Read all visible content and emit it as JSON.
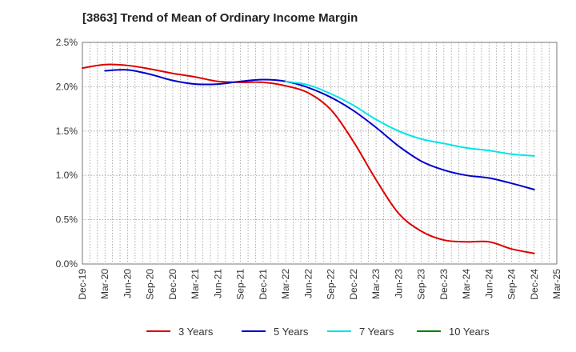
{
  "chart_data": {
    "type": "line",
    "title": "[3863]  Trend of Mean of Ordinary Income Margin",
    "xlabel": "",
    "ylabel": "",
    "ylim": [
      0,
      2.5
    ],
    "yticks": [
      "0.0%",
      "0.5%",
      "1.0%",
      "1.5%",
      "2.0%",
      "2.5%"
    ],
    "xticks": [
      "Dec-19",
      "Mar-20",
      "Jun-20",
      "Sep-20",
      "Dec-20",
      "Mar-21",
      "Jun-21",
      "Sep-21",
      "Dec-21",
      "Mar-22",
      "Jun-22",
      "Sep-22",
      "Dec-22",
      "Mar-23",
      "Jun-23",
      "Sep-23",
      "Dec-23",
      "Mar-24",
      "Jun-24",
      "Sep-24",
      "Dec-24",
      "Mar-25"
    ],
    "grid": true,
    "legend_position": "bottom",
    "series": [
      {
        "name": "3 Years",
        "color": "#dd0000",
        "x": [
          "Dec-19",
          "Mar-20",
          "Jun-20",
          "Sep-20",
          "Dec-20",
          "Mar-21",
          "Jun-21",
          "Sep-21",
          "Dec-21",
          "Mar-22",
          "Jun-22",
          "Sep-22",
          "Dec-22",
          "Mar-23",
          "Jun-23",
          "Sep-23",
          "Dec-23",
          "Mar-24",
          "Jun-24",
          "Sep-24",
          "Dec-24"
        ],
        "values": [
          2.21,
          2.25,
          2.24,
          2.2,
          2.15,
          2.11,
          2.06,
          2.05,
          2.05,
          2.01,
          1.93,
          1.74,
          1.38,
          0.95,
          0.57,
          0.37,
          0.27,
          0.25,
          0.25,
          0.17,
          0.12
        ]
      },
      {
        "name": "5 Years",
        "color": "#0000cc",
        "x": [
          "Mar-20",
          "Jun-20",
          "Sep-20",
          "Dec-20",
          "Mar-21",
          "Jun-21",
          "Sep-21",
          "Dec-21",
          "Mar-22",
          "Jun-22",
          "Sep-22",
          "Dec-22",
          "Mar-23",
          "Jun-23",
          "Sep-23",
          "Dec-23",
          "Mar-24",
          "Jun-24",
          "Sep-24",
          "Dec-24"
        ],
        "values": [
          2.18,
          2.19,
          2.14,
          2.07,
          2.03,
          2.03,
          2.06,
          2.08,
          2.06,
          1.99,
          1.88,
          1.73,
          1.54,
          1.33,
          1.16,
          1.06,
          1.0,
          0.97,
          0.91,
          0.84
        ]
      },
      {
        "name": "7 Years",
        "color": "#00e5e5",
        "x": [
          "Mar-22",
          "Jun-22",
          "Sep-22",
          "Dec-22",
          "Mar-23",
          "Jun-23",
          "Sep-23",
          "Dec-23",
          "Mar-24",
          "Jun-24",
          "Sep-24",
          "Dec-24"
        ],
        "values": [
          2.06,
          2.02,
          1.92,
          1.79,
          1.63,
          1.5,
          1.41,
          1.36,
          1.31,
          1.28,
          1.24,
          1.22
        ]
      },
      {
        "name": "10 Years",
        "color": "#008000",
        "x": [],
        "values": []
      }
    ]
  }
}
